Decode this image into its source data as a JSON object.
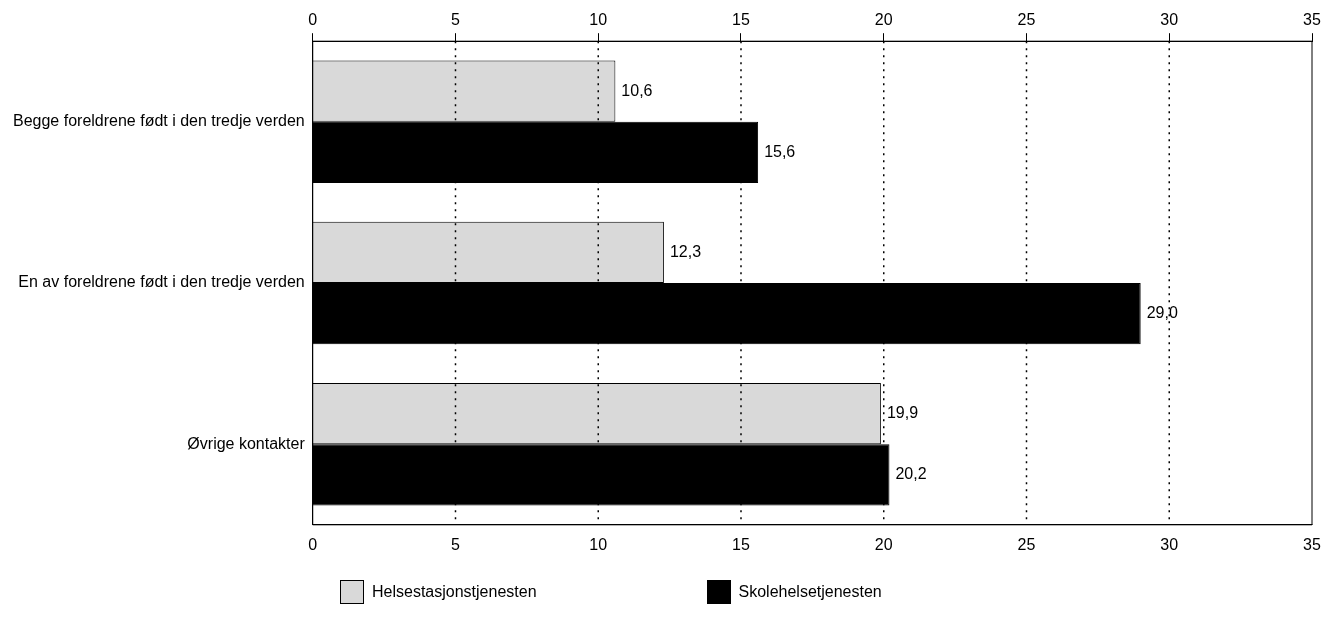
{
  "chart_data": {
    "type": "bar",
    "orientation": "horizontal",
    "categories": [
      "Begge foreldrene født i den tredje verden",
      "En av foreldrene født i den tredje verden",
      "Øvrige kontakter"
    ],
    "series": [
      {
        "name": "Helsestasjonstjenesten",
        "color": "#d9d9d9",
        "values": [
          10.6,
          12.3,
          19.9
        ],
        "value_labels": [
          "10,6",
          "12,3",
          "19,9"
        ]
      },
      {
        "name": "Skolehelsetjenesten",
        "color": "#000000",
        "values": [
          15.6,
          29.0,
          20.2
        ],
        "value_labels": [
          "15,6",
          "29,0",
          "20,2"
        ]
      }
    ],
    "xlim": [
      0,
      35
    ],
    "xticks": [
      0,
      5,
      10,
      15,
      20,
      25,
      30,
      35
    ],
    "x2lim": [
      0,
      35
    ],
    "x2ticks": [
      0,
      5,
      10,
      15,
      20,
      25,
      30,
      35
    ],
    "grid": "x",
    "legend": "bottom"
  }
}
